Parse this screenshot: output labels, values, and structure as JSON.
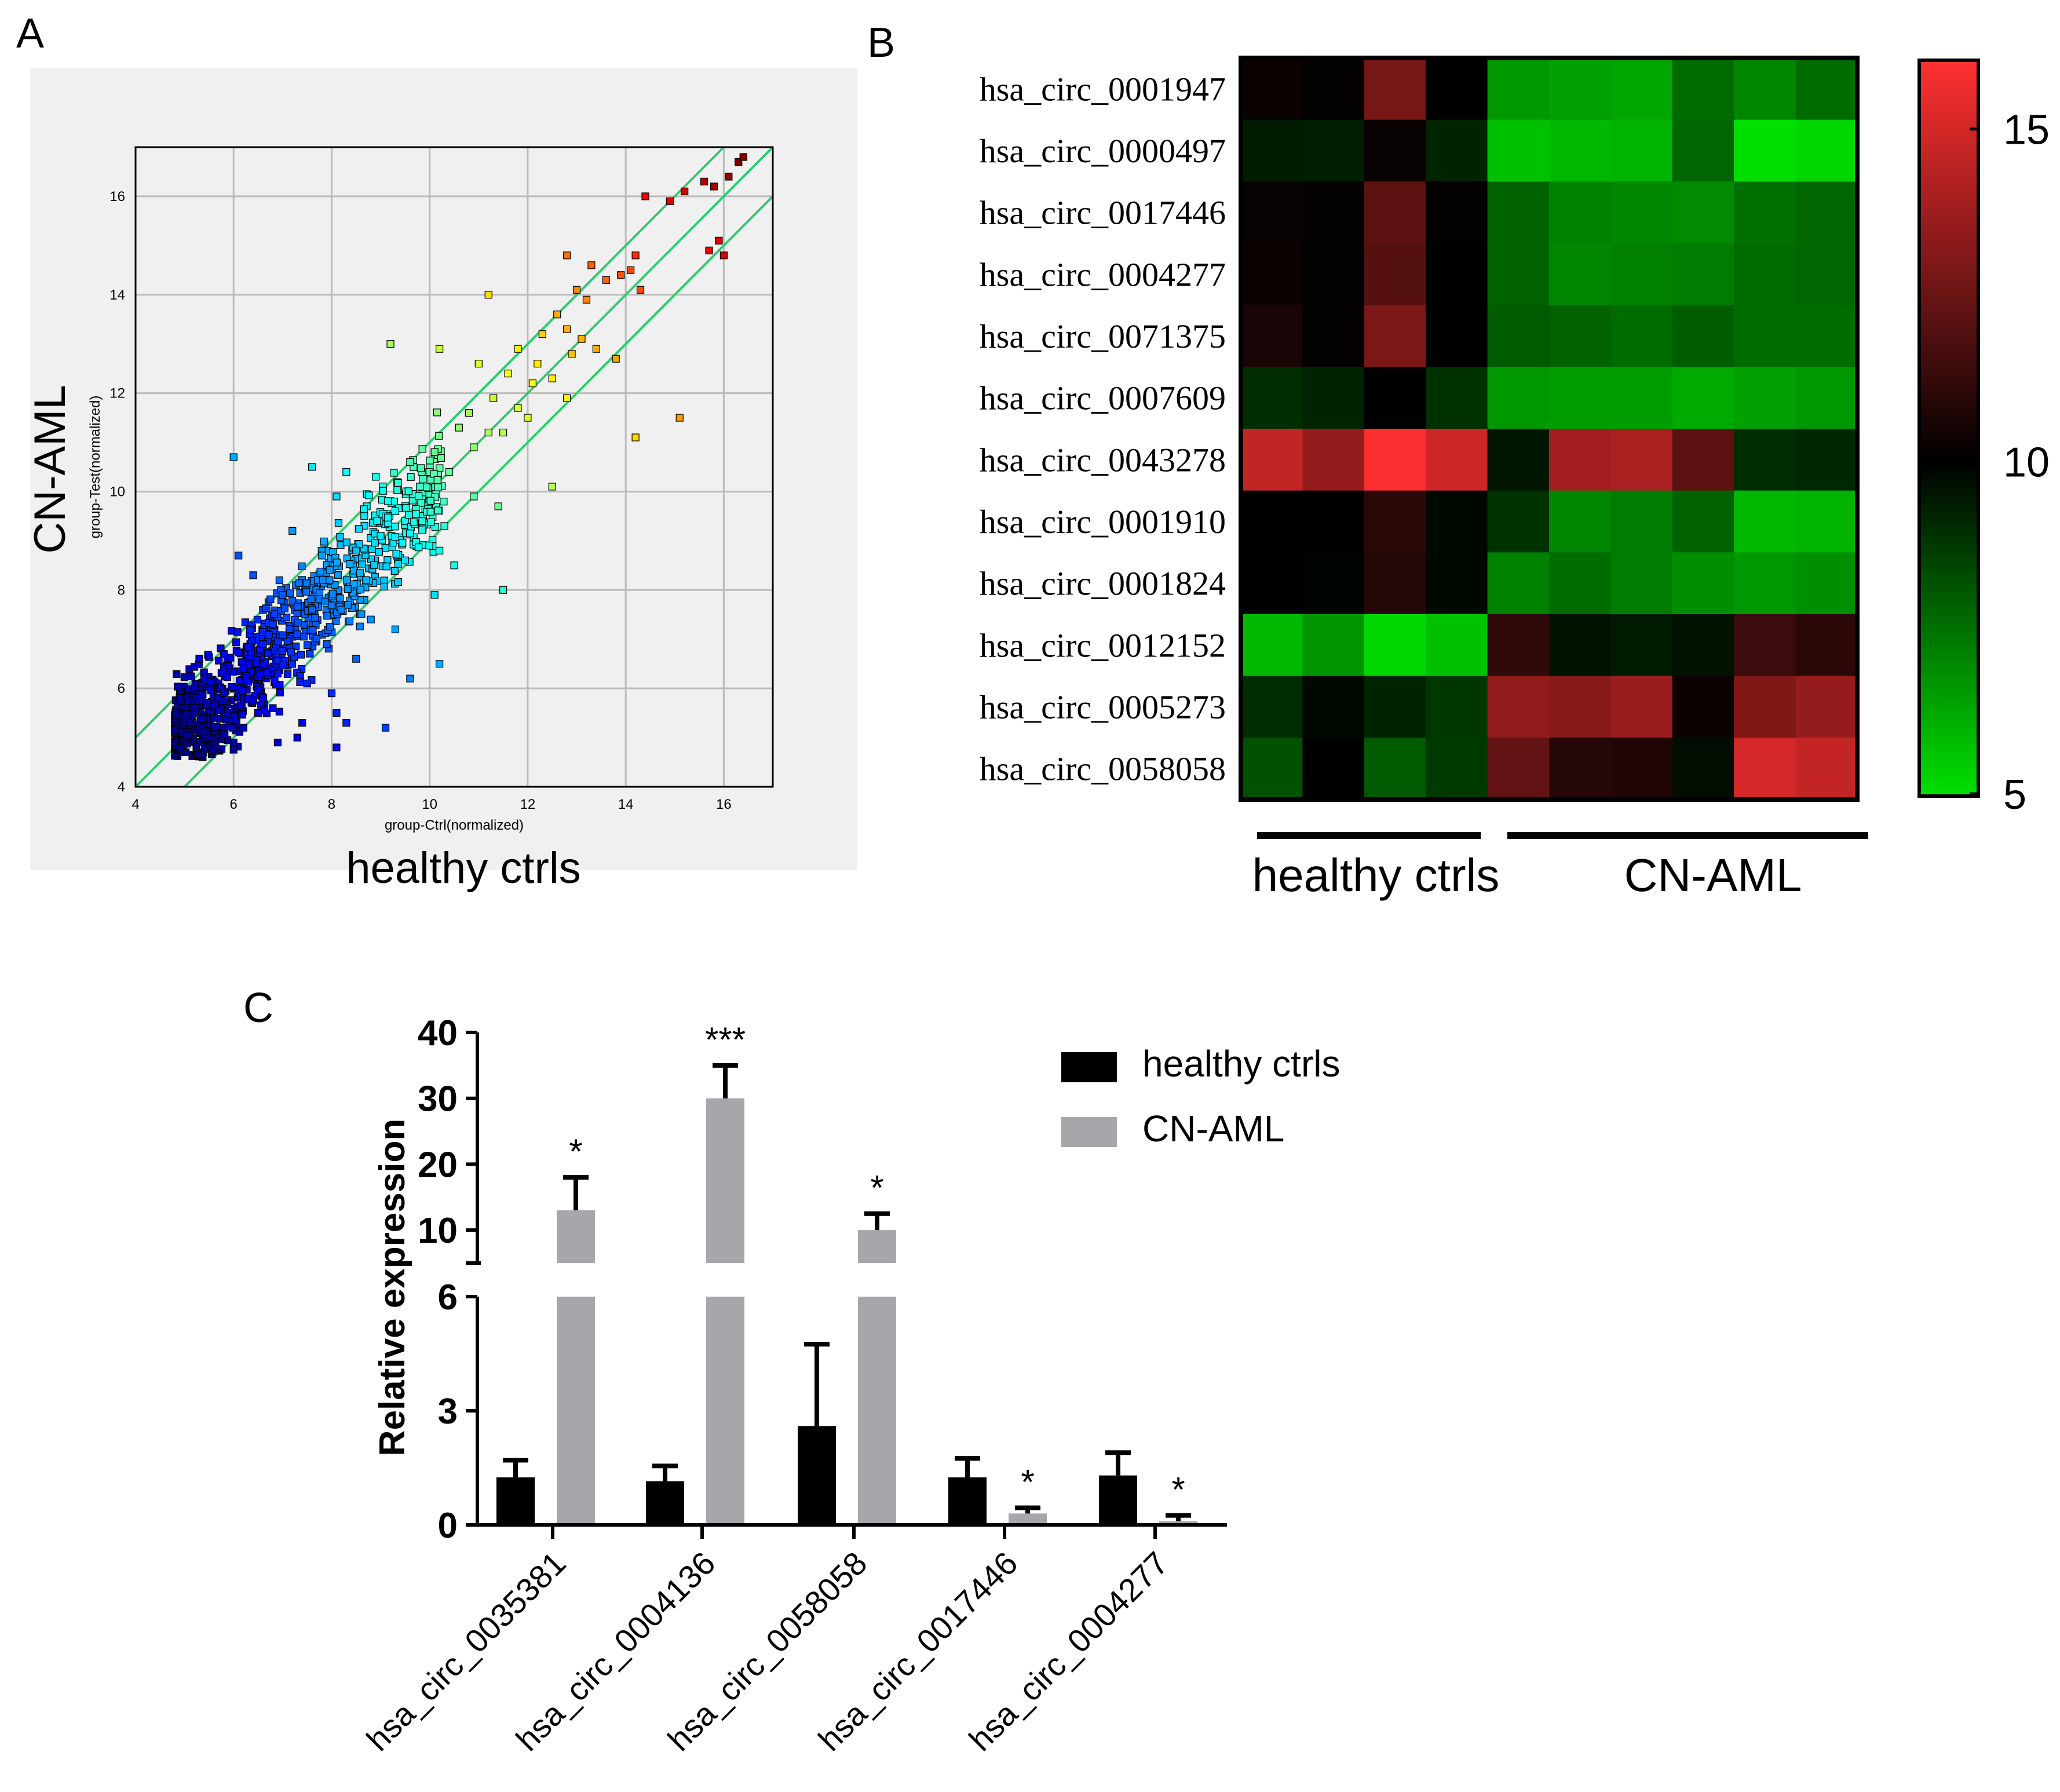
{
  "colors": {
    "scatter_panel_bg": "#f0f0f0",
    "diag_line": "#2ecc71",
    "grid": "#bbbbbb",
    "heat_low": "#00e000",
    "heat_mid": "#000000",
    "heat_high": "#ff3030",
    "bar_ctrl": "#000000",
    "bar_aml": "#a7a7ab"
  },
  "panels": {
    "a": "A",
    "b": "B",
    "c": "C"
  },
  "chart_data": [
    {
      "id": "A",
      "type": "scatter",
      "outer_xlabel": "healthy ctrls",
      "outer_ylabel": "CN-AML",
      "xlabel": "group-Ctrl(normalized)",
      "ylabel": "group-Test(normalized)",
      "xlim": [
        4,
        17
      ],
      "ylim": [
        4,
        17
      ],
      "xticks": [
        4,
        6,
        8,
        10,
        12,
        14,
        16
      ],
      "yticks": [
        4,
        6,
        8,
        10,
        12,
        14,
        16
      ],
      "grid": true,
      "fold_lines": [
        {
          "offset": 1,
          "name": "up 2-fold"
        },
        {
          "offset": 0,
          "name": "equal"
        },
        {
          "offset": -1,
          "name": "down 2-fold"
        }
      ],
      "color_by": "expression level (blue low → red high)",
      "points": [
        [
          16.3,
          16.7
        ],
        [
          16.1,
          16.4
        ],
        [
          15.8,
          16.2
        ],
        [
          16.4,
          16.8
        ],
        [
          14.4,
          16.0
        ],
        [
          15.2,
          16.1
        ],
        [
          14.9,
          15.9
        ],
        [
          15.6,
          16.3
        ],
        [
          15.9,
          15.1
        ],
        [
          15.7,
          14.9
        ],
        [
          16.0,
          14.8
        ],
        [
          14.2,
          14.8
        ],
        [
          13.3,
          14.6
        ],
        [
          12.8,
          14.8
        ],
        [
          13.0,
          14.1
        ],
        [
          13.6,
          14.3
        ],
        [
          14.1,
          14.5
        ],
        [
          13.2,
          13.9
        ],
        [
          13.9,
          14.4
        ],
        [
          14.3,
          14.1
        ],
        [
          11.2,
          14.0
        ],
        [
          12.6,
          13.6
        ],
        [
          12.8,
          13.3
        ],
        [
          13.1,
          13.1
        ],
        [
          12.3,
          13.2
        ],
        [
          11.8,
          12.9
        ],
        [
          12.2,
          12.6
        ],
        [
          12.9,
          12.8
        ],
        [
          13.4,
          12.9
        ],
        [
          13.8,
          12.7
        ],
        [
          10.2,
          12.9
        ],
        [
          11.0,
          12.6
        ],
        [
          9.2,
          13.0
        ],
        [
          11.6,
          12.4
        ],
        [
          12.1,
          12.2
        ],
        [
          12.5,
          12.3
        ],
        [
          11.3,
          11.9
        ],
        [
          11.8,
          11.7
        ],
        [
          10.8,
          11.6
        ],
        [
          12.0,
          11.5
        ],
        [
          11.5,
          11.2
        ],
        [
          12.8,
          11.9
        ],
        [
          10.6,
          11.3
        ],
        [
          11.2,
          11.2
        ],
        [
          10.9,
          10.9
        ],
        [
          15.1,
          11.5
        ],
        [
          14.2,
          11.1
        ],
        [
          10.1,
          10.8
        ],
        [
          9.6,
          10.6
        ],
        [
          10.4,
          10.4
        ],
        [
          8.9,
          10.3
        ],
        [
          10.9,
          9.9
        ],
        [
          11.4,
          9.7
        ],
        [
          9.8,
          10.1
        ],
        [
          8.3,
          10.4
        ],
        [
          7.6,
          10.5
        ],
        [
          6.0,
          10.7
        ],
        [
          12.5,
          10.1
        ],
        [
          9.3,
          9.6
        ],
        [
          10.3,
          9.3
        ],
        [
          8.1,
          9.9
        ],
        [
          7.2,
          9.2
        ],
        [
          9.0,
          9.1
        ],
        [
          9.5,
          8.6
        ],
        [
          10.2,
          8.8
        ],
        [
          10.5,
          8.5
        ],
        [
          8.5,
          8.8
        ],
        [
          7.8,
          8.7
        ],
        [
          8.7,
          8.2
        ],
        [
          11.5,
          8.0
        ],
        [
          6.1,
          8.7
        ],
        [
          6.4,
          8.3
        ],
        [
          7.0,
          7.9
        ],
        [
          7.6,
          7.6
        ],
        [
          8.2,
          7.6
        ],
        [
          8.8,
          7.4
        ],
        [
          9.3,
          7.2
        ],
        [
          10.1,
          7.9
        ],
        [
          6.8,
          7.3
        ],
        [
          6.6,
          6.9
        ],
        [
          7.3,
          7.1
        ],
        [
          7.9,
          6.9
        ],
        [
          8.5,
          6.6
        ],
        [
          9.6,
          6.2
        ],
        [
          10.2,
          6.5
        ],
        [
          5.8,
          6.7
        ],
        [
          6.2,
          6.4
        ],
        [
          6.9,
          6.3
        ],
        [
          7.5,
          6.1
        ],
        [
          8.0,
          5.9
        ],
        [
          5.4,
          6.2
        ],
        [
          5.8,
          5.9
        ],
        [
          6.3,
          5.8
        ],
        [
          6.8,
          5.6
        ],
        [
          7.4,
          5.3
        ],
        [
          8.1,
          5.5
        ],
        [
          9.1,
          5.2
        ],
        [
          5.2,
          5.6
        ],
        [
          5.6,
          5.4
        ],
        [
          6.2,
          5.2
        ],
        [
          6.9,
          4.9
        ],
        [
          7.3,
          5.0
        ],
        [
          8.3,
          5.3
        ],
        [
          5.5,
          5.0
        ],
        [
          6.0,
          4.9
        ],
        [
          8.1,
          4.8
        ],
        [
          5.1,
          5.3
        ],
        [
          4.9,
          5.8
        ],
        [
          5.3,
          6.6
        ],
        [
          6.5,
          5.5
        ]
      ]
    },
    {
      "id": "B",
      "type": "heatmap",
      "rows": [
        "hsa_circ_0001947",
        "hsa_circ_0000497",
        "hsa_circ_0017446",
        "hsa_circ_0004277",
        "hsa_circ_0071375",
        "hsa_circ_0007609",
        "hsa_circ_0043278",
        "hsa_circ_0001910",
        "hsa_circ_0001824",
        "hsa_circ_0012152",
        "hsa_circ_0005273",
        "hsa_circ_0058058"
      ],
      "groups": [
        {
          "label": "healthy ctrls",
          "n": 4
        },
        {
          "label": "CN-AML",
          "n": 6
        }
      ],
      "scale": {
        "min": 5,
        "max": 16,
        "mid": 10,
        "ticks": [
          15,
          10,
          5
        ]
      },
      "values": [
        [
          10.3,
          10.1,
          12.8,
          10.0,
          6.6,
          6.4,
          6.3,
          7.6,
          7.0,
          7.6
        ],
        [
          9.4,
          9.3,
          10.2,
          9.2,
          5.7,
          5.9,
          6.0,
          7.7,
          5.0,
          5.2
        ],
        [
          10.2,
          10.1,
          12.2,
          10.1,
          7.8,
          7.1,
          7.0,
          6.9,
          7.5,
          7.7
        ],
        [
          10.3,
          10.1,
          12.0,
          10.0,
          7.8,
          7.0,
          7.1,
          7.2,
          7.6,
          7.7
        ],
        [
          10.6,
          10.1,
          12.9,
          10.0,
          8.0,
          7.8,
          7.6,
          7.9,
          7.6,
          7.6
        ],
        [
          9.0,
          9.2,
          10.0,
          8.9,
          6.6,
          6.5,
          6.5,
          6.2,
          6.4,
          6.6
        ],
        [
          14.6,
          13.5,
          15.9,
          14.8,
          9.5,
          13.8,
          14.0,
          12.2,
          9.0,
          9.1
        ],
        [
          10.0,
          10.0,
          11.0,
          9.8,
          8.9,
          7.0,
          7.2,
          7.8,
          5.9,
          6.0
        ],
        [
          10.0,
          9.9,
          10.9,
          9.8,
          7.1,
          7.6,
          7.2,
          6.8,
          6.6,
          6.8
        ],
        [
          5.9,
          6.7,
          5.2,
          5.7,
          11.1,
          9.6,
          9.4,
          9.6,
          11.4,
          11.0
        ],
        [
          9.0,
          9.8,
          9.2,
          8.8,
          13.4,
          13.2,
          13.6,
          10.3,
          13.0,
          13.5
        ],
        [
          8.2,
          10.0,
          8.0,
          8.7,
          12.3,
          10.9,
          10.8,
          9.7,
          15.0,
          14.6
        ]
      ]
    },
    {
      "id": "C",
      "type": "bar",
      "ylabel": "Relative expression",
      "axis_break": {
        "lower": [
          0,
          6
        ],
        "upper": [
          5,
          40
        ]
      },
      "yticks_lower": [
        0,
        3,
        6
      ],
      "yticks_upper": [
        10,
        20,
        30,
        40
      ],
      "categories": [
        "hsa_circ_0035381",
        "hsa_circ_0004136",
        "hsa_circ_0058058",
        "hsa_circ_0017446",
        "hsa_circ_0004277"
      ],
      "series": [
        {
          "name": "healthy ctrls",
          "values": [
            1.25,
            1.15,
            2.6,
            1.25,
            1.3
          ],
          "errors": [
            0.45,
            0.4,
            2.15,
            0.5,
            0.6
          ]
        },
        {
          "name": "CN-AML",
          "values": [
            13.0,
            30.0,
            10.0,
            0.3,
            0.1
          ],
          "errors": [
            5.0,
            5.0,
            2.5,
            0.15,
            0.15
          ]
        }
      ],
      "significance": [
        "*",
        "***",
        "*",
        "*",
        "*"
      ]
    }
  ]
}
